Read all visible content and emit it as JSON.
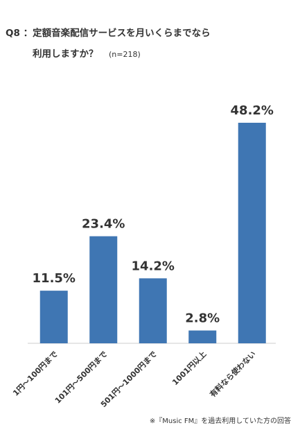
{
  "chart_data": {
    "type": "bar",
    "title": [
      "Q8 ：定額音楽配信サービスを月いくらまでなら",
      "利用しますか？"
    ],
    "subtitle": "(n=218)",
    "categories": [
      "1円～100円まで",
      "101円～500円まで",
      "501円～1000円まで",
      "1001円以上",
      "有料なら使わない"
    ],
    "values": [
      11.5,
      23.4,
      14.2,
      2.8,
      48.2
    ],
    "value_labels": [
      "11.5%",
      "23.4%",
      "14.2%",
      "2.8%",
      "48.2%"
    ],
    "color": "#3f76b3",
    "footnote": "※『Music FM』を過去利用していた方の回答"
  }
}
